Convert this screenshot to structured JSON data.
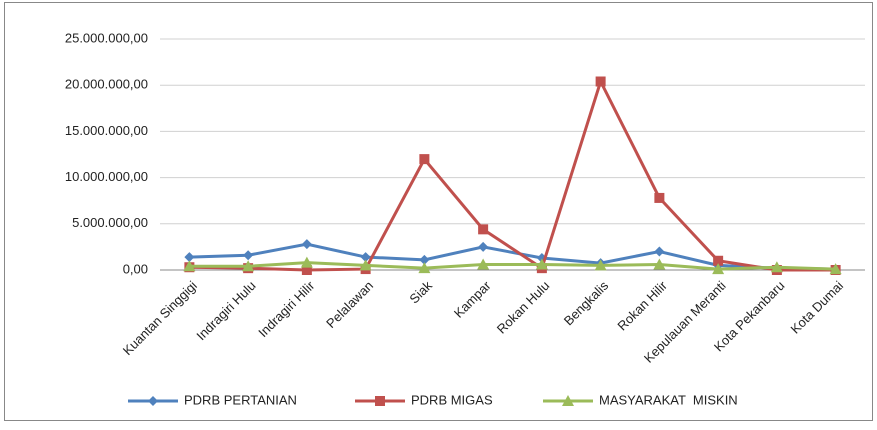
{
  "chart_data": {
    "type": "line",
    "categories": [
      "Kuantan Singgigi",
      "Indragiri Hulu",
      "Indragiri Hilir",
      "Pelalawan",
      "Siak",
      "Kampar",
      "Rokan Hulu",
      "Bengkalis",
      "Rokan Hilir",
      "Kepulauan Meranti",
      "Kota Pekanbaru",
      "Kota Dumai"
    ],
    "series": [
      {
        "name": "PDRB PERTANIAN",
        "color": "#4f81bd",
        "marker": "diamond",
        "values": [
          1400000,
          1600000,
          2800000,
          1400000,
          1100000,
          2500000,
          1300000,
          750000,
          2000000,
          500000,
          200000,
          100000
        ]
      },
      {
        "name": "PDRB MIGAS",
        "color": "#c0504d",
        "marker": "square",
        "values": [
          300000,
          200000,
          0,
          100000,
          12000000,
          4400000,
          200000,
          20400000,
          7800000,
          1000000,
          0,
          0
        ]
      },
      {
        "name": "MASYARAKAT  MISKIN",
        "color": "#9bbb59",
        "marker": "triangle",
        "values": [
          400000,
          400000,
          800000,
          500000,
          200000,
          600000,
          600000,
          500000,
          600000,
          100000,
          300000,
          100000
        ]
      }
    ],
    "ylim": [
      0,
      25000000
    ],
    "yticks": [
      {
        "value": 0,
        "label": "0,00"
      },
      {
        "value": 5000000,
        "label": "5.000.000,00"
      },
      {
        "value": 10000000,
        "label": "10.000.000,00"
      },
      {
        "value": 15000000,
        "label": "15.000.000,00"
      },
      {
        "value": 20000000,
        "label": "20.000.000,00"
      },
      {
        "value": 25000000,
        "label": "25.000.000,00"
      }
    ],
    "grid": true,
    "legend": "bottom"
  }
}
